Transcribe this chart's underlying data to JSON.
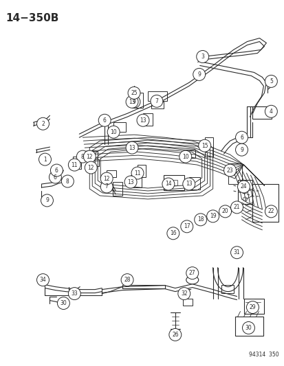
{
  "title": "14−350B",
  "part_number": "94314  350",
  "bg_color": "#ffffff",
  "line_color": "#2a2a2a",
  "title_fontsize": 11,
  "label_fontsize": 6.5,
  "fig_width": 4.14,
  "fig_height": 5.33,
  "dpi": 100
}
